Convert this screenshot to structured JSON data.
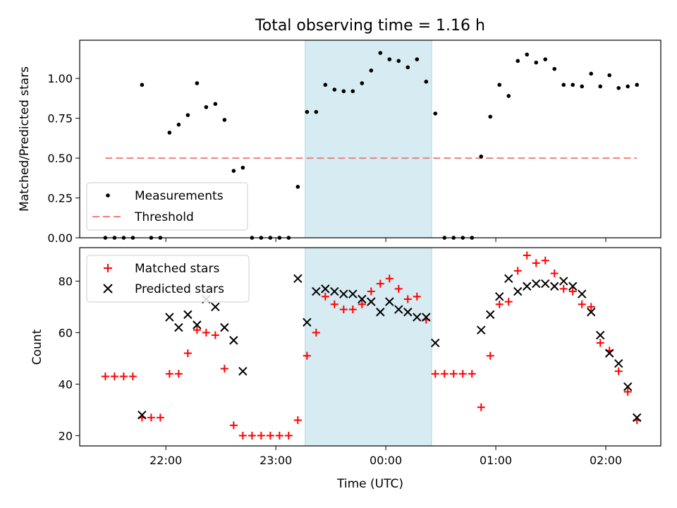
{
  "chart_data": [
    {
      "type": "scatter",
      "title": "Total observing time = 1.16 h",
      "xlabel": "",
      "ylabel": "Matched/Predicted stars",
      "xlim": [
        "21:13",
        "02:30"
      ],
      "ylim": [
        0,
        1.24
      ],
      "yticks": [
        0.0,
        0.25,
        0.5,
        0.75,
        1.0
      ],
      "ytick_labels": [
        "0.00",
        "0.25",
        "0.50",
        "0.75",
        "1.00"
      ],
      "highlight_span": [
        "23:16",
        "00:25"
      ],
      "legend_position": "lower-left",
      "series": [
        {
          "name": "Measurements",
          "marker": "dot",
          "color": "#000000",
          "points": [
            [
              "21:27",
              0.0
            ],
            [
              "21:32",
              0.0
            ],
            [
              "21:37",
              0.0
            ],
            [
              "21:42",
              0.0
            ],
            [
              "21:47",
              0.96
            ],
            [
              "21:52",
              0.0
            ],
            [
              "21:57",
              0.0
            ],
            [
              "22:02",
              0.66
            ],
            [
              "22:07",
              0.71
            ],
            [
              "22:12",
              0.77
            ],
            [
              "22:17",
              0.97
            ],
            [
              "22:22",
              0.82
            ],
            [
              "22:27",
              0.84
            ],
            [
              "22:32",
              0.74
            ],
            [
              "22:37",
              0.42
            ],
            [
              "22:42",
              0.44
            ],
            [
              "22:47",
              0.0
            ],
            [
              "22:52",
              0.0
            ],
            [
              "22:57",
              0.0
            ],
            [
              "23:02",
              0.0
            ],
            [
              "23:07",
              0.0
            ],
            [
              "23:12",
              0.32
            ],
            [
              "23:17",
              0.79
            ],
            [
              "23:22",
              0.79
            ],
            [
              "23:27",
              0.96
            ],
            [
              "23:32",
              0.93
            ],
            [
              "23:37",
              0.92
            ],
            [
              "23:42",
              0.92
            ],
            [
              "23:47",
              0.97
            ],
            [
              "23:52",
              1.05
            ],
            [
              "23:57",
              1.16
            ],
            [
              "00:02",
              1.12
            ],
            [
              "00:07",
              1.11
            ],
            [
              "00:12",
              1.07
            ],
            [
              "00:17",
              1.12
            ],
            [
              "00:22",
              0.98
            ],
            [
              "00:27",
              0.78
            ],
            [
              "00:32",
              0.0
            ],
            [
              "00:37",
              0.0
            ],
            [
              "00:42",
              0.0
            ],
            [
              "00:47",
              0.0
            ],
            [
              "00:52",
              0.51
            ],
            [
              "00:57",
              0.76
            ],
            [
              "01:02",
              0.96
            ],
            [
              "01:07",
              0.89
            ],
            [
              "01:12",
              1.11
            ],
            [
              "01:17",
              1.15
            ],
            [
              "01:22",
              1.1
            ],
            [
              "01:27",
              1.12
            ],
            [
              "01:32",
              1.06
            ],
            [
              "01:37",
              0.96
            ],
            [
              "01:42",
              0.96
            ],
            [
              "01:47",
              0.95
            ],
            [
              "01:52",
              1.03
            ],
            [
              "01:57",
              0.95
            ],
            [
              "02:02",
              1.02
            ],
            [
              "02:07",
              0.94
            ],
            [
              "02:12",
              0.95
            ],
            [
              "02:17",
              0.96
            ]
          ]
        },
        {
          "name": "Threshold",
          "marker": "dashed-line",
          "color": "#f08080",
          "points": [
            [
              "21:27",
              0.5
            ],
            [
              "02:17",
              0.5
            ]
          ]
        }
      ]
    },
    {
      "type": "scatter",
      "title": "",
      "xlabel": "Time (UTC)",
      "ylabel": "Count",
      "xlim": [
        "21:13",
        "02:30"
      ],
      "ylim": [
        16,
        93
      ],
      "yticks": [
        20,
        40,
        60,
        80
      ],
      "ytick_labels": [
        "20",
        "40",
        "60",
        "80"
      ],
      "xticks": [
        "22:00",
        "23:00",
        "00:00",
        "01:00",
        "02:00"
      ],
      "highlight_span": [
        "23:16",
        "00:25"
      ],
      "legend_position": "upper-left",
      "series": [
        {
          "name": "Matched stars",
          "marker": "plus",
          "color": "#ff0000",
          "points": [
            [
              "21:27",
              43
            ],
            [
              "21:32",
              43
            ],
            [
              "21:37",
              43
            ],
            [
              "21:42",
              43
            ],
            [
              "21:47",
              27
            ],
            [
              "21:52",
              27
            ],
            [
              "21:57",
              27
            ],
            [
              "22:02",
              44
            ],
            [
              "22:07",
              44
            ],
            [
              "22:12",
              52
            ],
            [
              "22:17",
              61
            ],
            [
              "22:22",
              60
            ],
            [
              "22:27",
              59
            ],
            [
              "22:32",
              46
            ],
            [
              "22:37",
              24
            ],
            [
              "22:42",
              20
            ],
            [
              "22:47",
              20
            ],
            [
              "22:52",
              20
            ],
            [
              "22:57",
              20
            ],
            [
              "23:02",
              20
            ],
            [
              "23:07",
              20
            ],
            [
              "23:12",
              26
            ],
            [
              "23:17",
              51
            ],
            [
              "23:22",
              60
            ],
            [
              "23:27",
              74
            ],
            [
              "23:32",
              71
            ],
            [
              "23:37",
              69
            ],
            [
              "23:42",
              69
            ],
            [
              "23:47",
              71
            ],
            [
              "23:52",
              76
            ],
            [
              "23:57",
              79
            ],
            [
              "00:02",
              81
            ],
            [
              "00:07",
              77
            ],
            [
              "00:12",
              73
            ],
            [
              "00:17",
              74
            ],
            [
              "00:22",
              65
            ],
            [
              "00:27",
              44
            ],
            [
              "00:32",
              44
            ],
            [
              "00:37",
              44
            ],
            [
              "00:42",
              44
            ],
            [
              "00:47",
              44
            ],
            [
              "00:52",
              31
            ],
            [
              "00:57",
              51
            ],
            [
              "01:02",
              71
            ],
            [
              "01:07",
              72
            ],
            [
              "01:12",
              84
            ],
            [
              "01:17",
              90
            ],
            [
              "01:22",
              87
            ],
            [
              "01:27",
              88
            ],
            [
              "01:32",
              83
            ],
            [
              "01:37",
              77
            ],
            [
              "01:42",
              76
            ],
            [
              "01:47",
              71
            ],
            [
              "01:52",
              70
            ],
            [
              "01:57",
              56
            ],
            [
              "02:02",
              53
            ],
            [
              "02:07",
              45
            ],
            [
              "02:12",
              37
            ],
            [
              "02:17",
              26
            ]
          ]
        },
        {
          "name": "Predicted stars",
          "marker": "x",
          "color": "#000000",
          "points": [
            [
              "21:47",
              28
            ],
            [
              "22:02",
              66
            ],
            [
              "22:07",
              62
            ],
            [
              "22:12",
              67
            ],
            [
              "22:17",
              63
            ],
            [
              "22:22",
              73
            ],
            [
              "22:27",
              70
            ],
            [
              "22:32",
              62
            ],
            [
              "22:37",
              57
            ],
            [
              "22:42",
              45
            ],
            [
              "23:12",
              81
            ],
            [
              "23:17",
              64
            ],
            [
              "23:22",
              76
            ],
            [
              "23:27",
              77
            ],
            [
              "23:32",
              76
            ],
            [
              "23:37",
              75
            ],
            [
              "23:42",
              75
            ],
            [
              "23:47",
              73
            ],
            [
              "23:52",
              72
            ],
            [
              "23:57",
              68
            ],
            [
              "00:02",
              72
            ],
            [
              "00:07",
              69
            ],
            [
              "00:12",
              68
            ],
            [
              "00:17",
              66
            ],
            [
              "00:22",
              66
            ],
            [
              "00:27",
              56
            ],
            [
              "00:52",
              61
            ],
            [
              "00:57",
              67
            ],
            [
              "01:02",
              74
            ],
            [
              "01:07",
              81
            ],
            [
              "01:12",
              76
            ],
            [
              "01:17",
              78
            ],
            [
              "01:22",
              79
            ],
            [
              "01:27",
              79
            ],
            [
              "01:32",
              78
            ],
            [
              "01:37",
              80
            ],
            [
              "01:42",
              78
            ],
            [
              "01:47",
              75
            ],
            [
              "01:52",
              68
            ],
            [
              "01:57",
              59
            ],
            [
              "02:02",
              52
            ],
            [
              "02:07",
              48
            ],
            [
              "02:12",
              39
            ],
            [
              "02:17",
              27
            ]
          ]
        }
      ]
    }
  ]
}
